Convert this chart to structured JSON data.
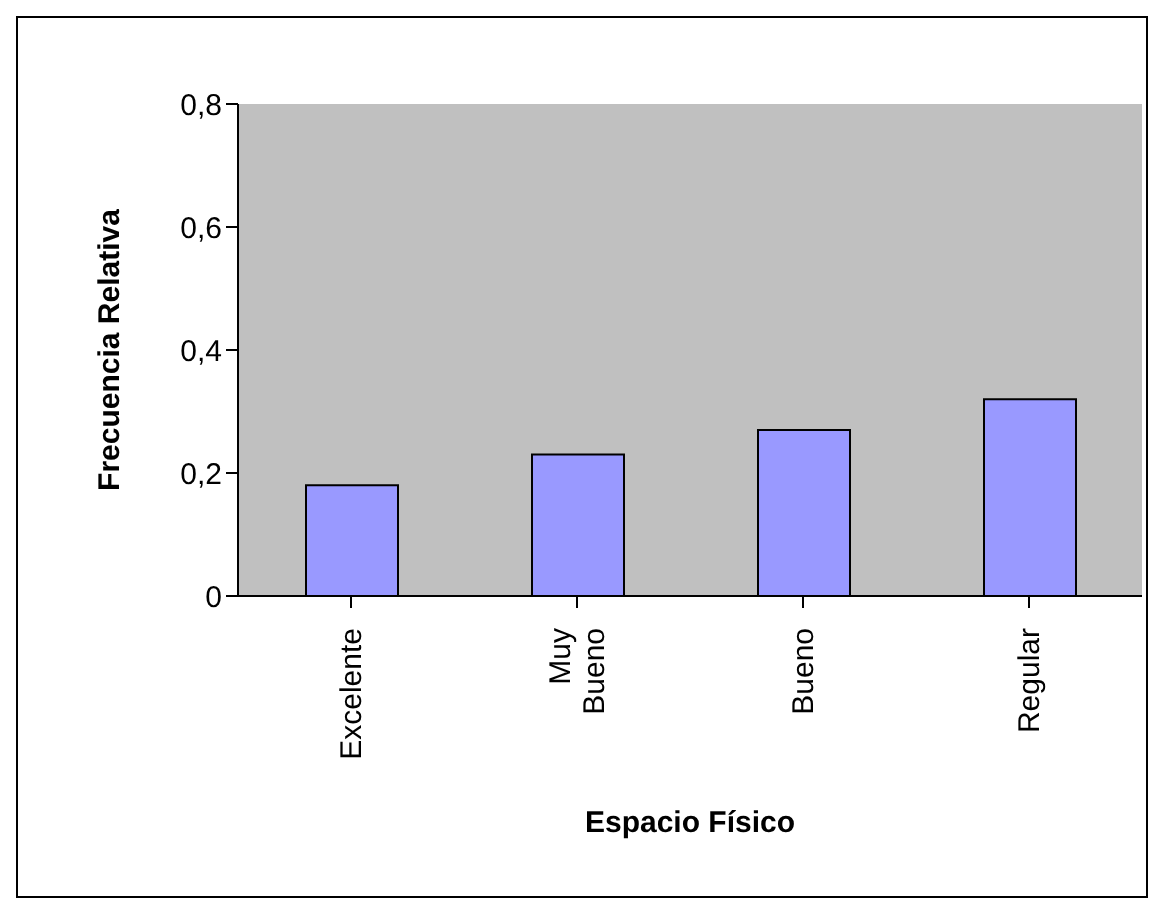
{
  "chart_data": {
    "type": "bar",
    "xlabel": "Espacio Físico",
    "ylabel": "Frecuencia Relativa",
    "categories": [
      "Excelente",
      "Muy Bueno",
      "Bueno",
      "Regular"
    ],
    "values": [
      0.18,
      0.23,
      0.27,
      0.32
    ],
    "color": "#9999ff",
    "ylim": [
      0,
      0.8
    ],
    "yticks": [
      {
        "value": 0,
        "label": "0"
      },
      {
        "value": 0.2,
        "label": "0,2"
      },
      {
        "value": 0.4,
        "label": "0,4"
      },
      {
        "value": 0.6,
        "label": "0,6"
      },
      {
        "value": 0.8,
        "label": "0,8"
      }
    ],
    "grid": false
  }
}
